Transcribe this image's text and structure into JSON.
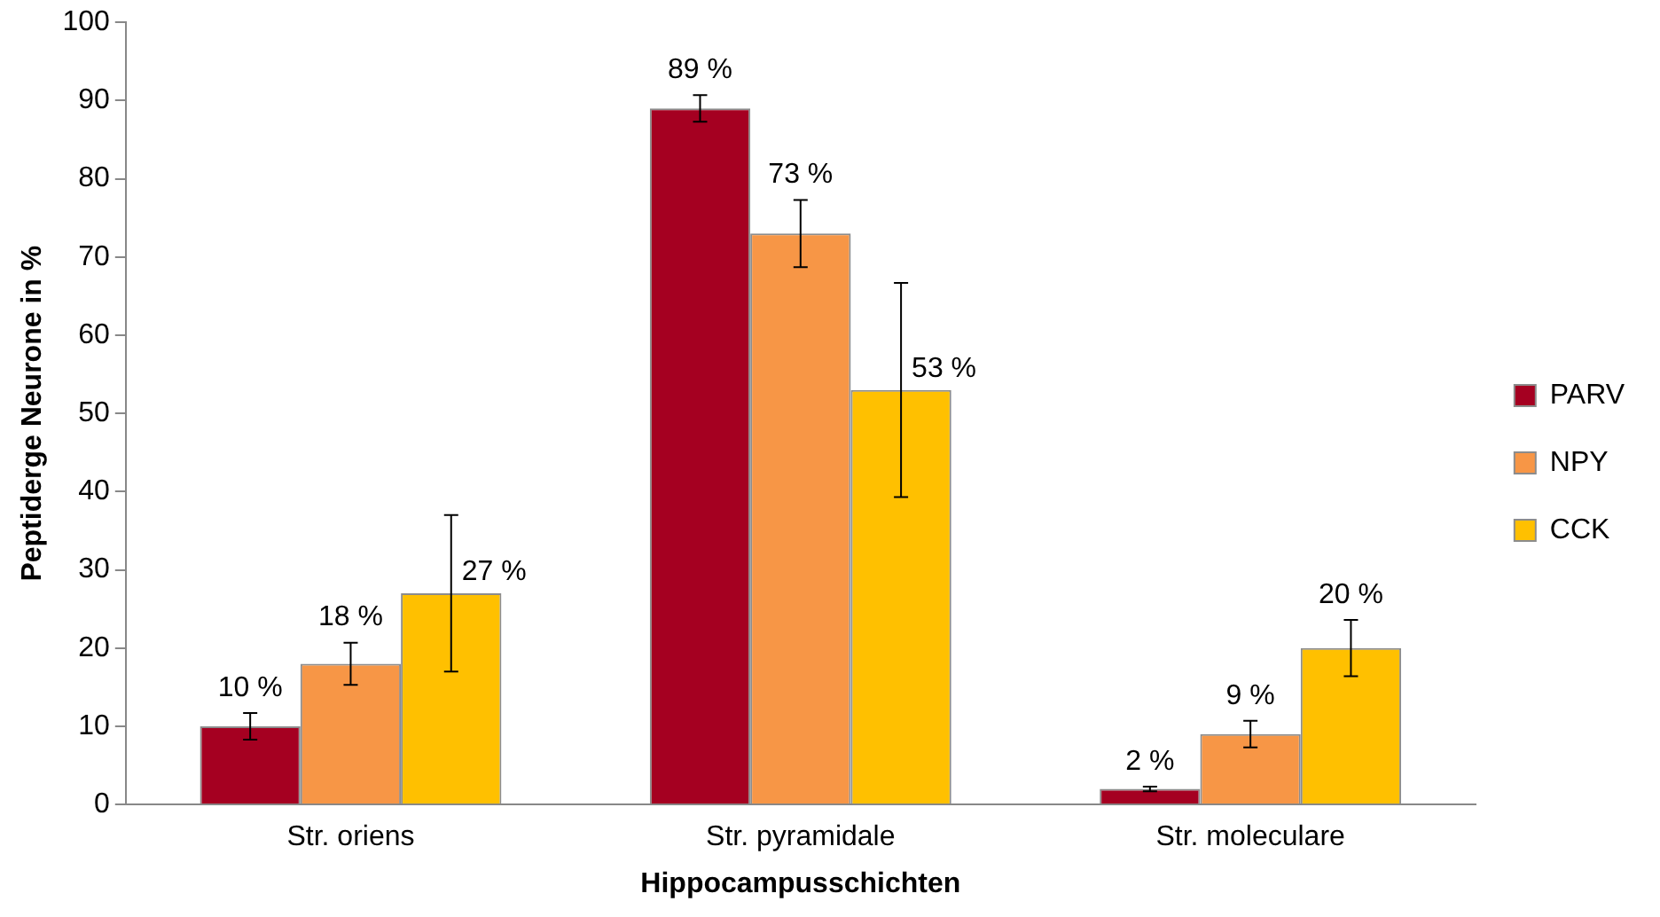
{
  "chart_data": {
    "type": "bar",
    "xlabel": "Hippocampusschichten",
    "ylabel": "Peptiderge Neurone in %",
    "categories": [
      "Str. oriens",
      "Str. pyramidale",
      "Str. moleculare"
    ],
    "series": [
      {
        "name": "PARV",
        "color": "#a50021",
        "values": [
          10,
          89,
          2
        ],
        "errors": [
          1.7,
          1.7,
          0.3
        ],
        "value_labels": [
          "10 %",
          "89 %",
          "2 %"
        ]
      },
      {
        "name": "NPY",
        "color": "#f79646",
        "values": [
          18,
          73,
          9
        ],
        "errors": [
          2.7,
          4.3,
          1.7
        ],
        "value_labels": [
          "18 %",
          "73 %",
          "9 %"
        ]
      },
      {
        "name": "CCK",
        "color": "#ffc000",
        "values": [
          27,
          53,
          20
        ],
        "errors": [
          10,
          13.7,
          3.6
        ],
        "value_labels": [
          "27 %",
          "53 %",
          "20 %"
        ]
      }
    ],
    "ylim": [
      0,
      100
    ],
    "yticks": [
      0,
      10,
      20,
      30,
      40,
      50,
      60,
      70,
      80,
      90,
      100
    ],
    "grid": false,
    "legend": "right"
  }
}
